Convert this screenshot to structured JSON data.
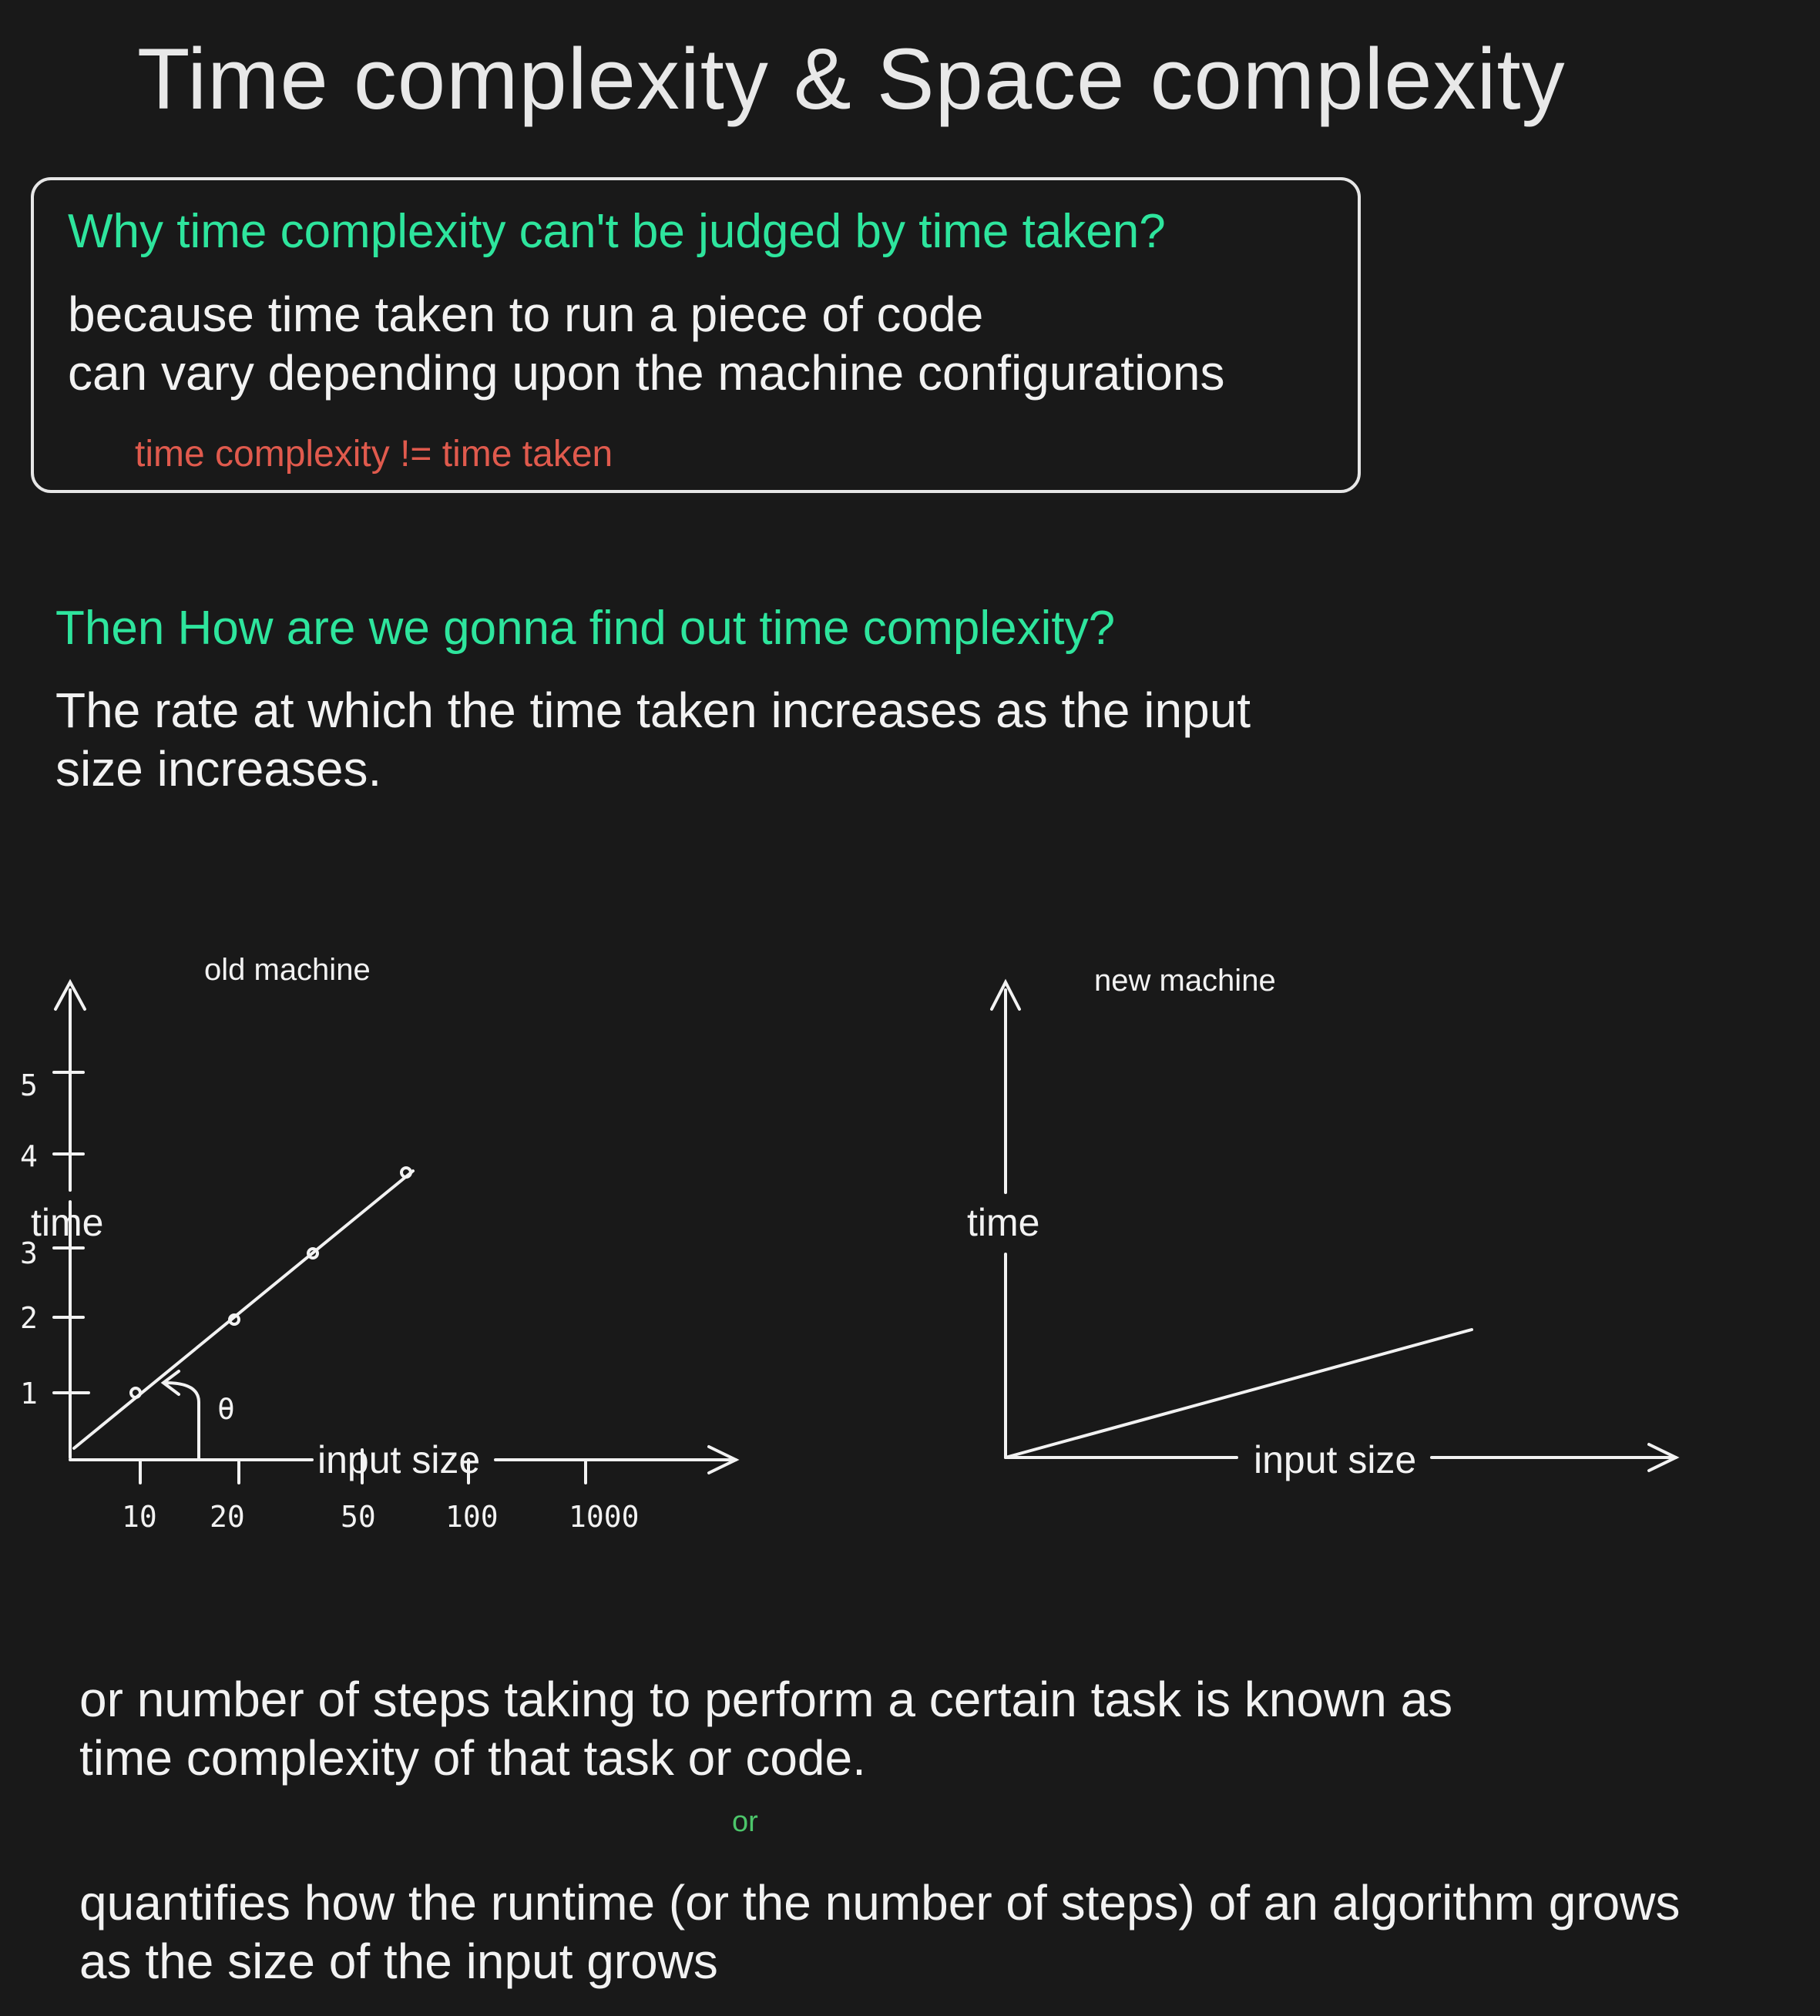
{
  "title": "Time complexity & Space complexity",
  "box": {
    "question": "Why time complexity can't be judged by time taken?",
    "answer_line1": "because time taken to run a piece of code",
    "answer_line2": "can vary depending upon the machine configurations",
    "note": "time complexity != time taken"
  },
  "section2": {
    "question": "Then How are we gonna find out time complexity?",
    "answer_line1": "The rate at which the time taken increases as the input",
    "answer_line2": "size increases."
  },
  "chart_data": [
    {
      "type": "line",
      "title": "old machine",
      "xlabel": "input size",
      "ylabel": "time",
      "x_ticks": [
        "10",
        "20",
        "50",
        "100",
        "1000"
      ],
      "y_ticks": [
        "1",
        "2",
        "3",
        "4",
        "5"
      ],
      "angle_label": "θ",
      "points": [
        [
          10,
          1
        ],
        [
          20,
          2
        ],
        [
          50,
          3
        ]
      ]
    },
    {
      "type": "line",
      "title": "new machine",
      "xlabel": "input size",
      "ylabel": "time"
    }
  ],
  "bottom": {
    "line1": "or number of steps taking to perform a certain task is known as",
    "line2": "time complexity of that task or code.",
    "or": "or",
    "line3": "quantifies how the runtime (or the number of steps) of an algorithm grows",
    "line4": "as the size of the input grows"
  }
}
